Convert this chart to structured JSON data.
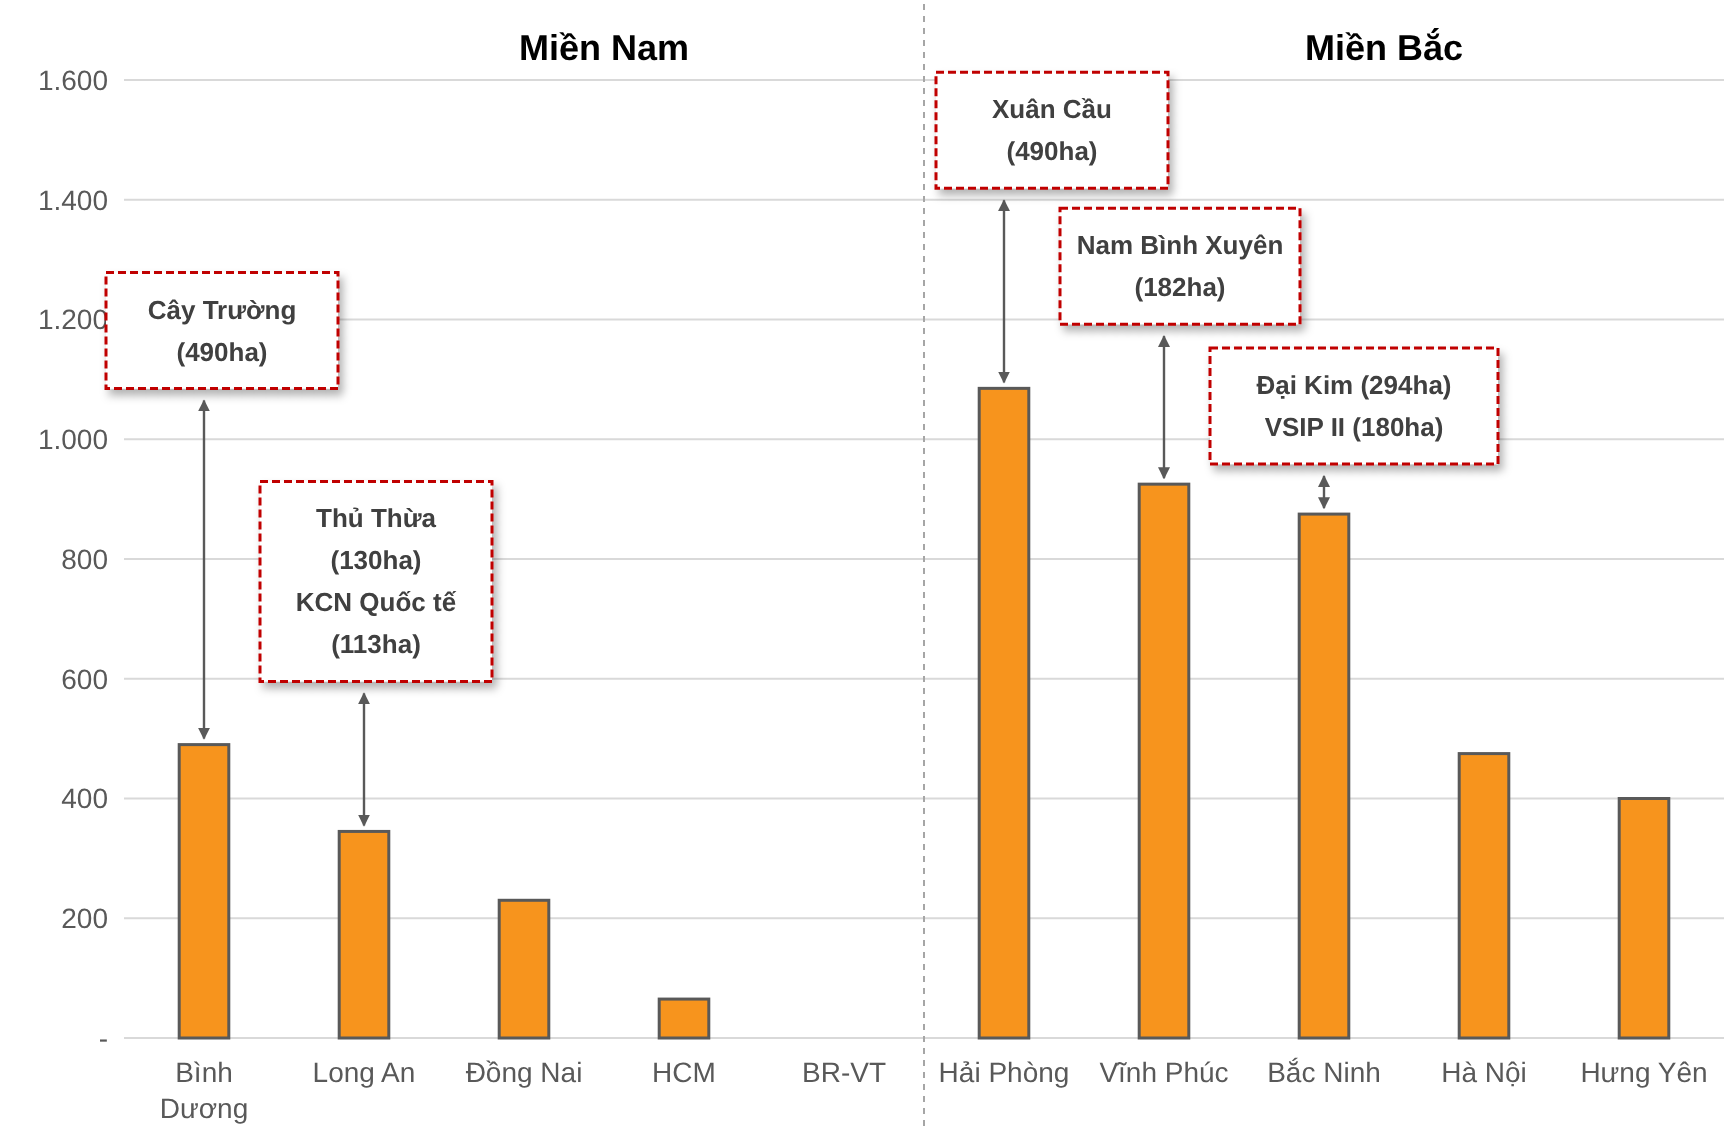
{
  "chart_data": {
    "type": "bar",
    "categories": [
      "Bình\nDương",
      "Long An",
      "Đồng Nai",
      "HCM",
      "BR-VT",
      "Hải Phòng",
      "Vĩnh Phúc",
      "Bắc Ninh",
      "Hà Nội",
      "Hưng Yên"
    ],
    "values": [
      490,
      345,
      230,
      65,
      null,
      1085,
      925,
      875,
      475,
      400
    ],
    "color": "#f7941d",
    "ylim": [
      0,
      1600
    ],
    "yticks": [
      {
        "value": 0,
        "label": "-"
      },
      {
        "value": 200,
        "label": "200"
      },
      {
        "value": 400,
        "label": "400"
      },
      {
        "value": 600,
        "label": "600"
      },
      {
        "value": 800,
        "label": "800"
      },
      {
        "value": 1000,
        "label": "1.000"
      },
      {
        "value": 1200,
        "label": "1.200"
      },
      {
        "value": 1400,
        "label": "1.400"
      },
      {
        "value": 1600,
        "label": "1.600"
      }
    ],
    "grid": "y",
    "annotations": [
      "Miền Nam",
      "Miền Bắc",
      "Cây Trường\n(490ha)",
      "Thủ Thừa\n(130ha)\nKCN Quốc tế\n(113ha)",
      "Xuân Cầu\n(490ha)",
      "Nam Bình Xuyên\n(182ha)",
      "Đại Kim (294ha)\nVSIP II (180ha)"
    ]
  }
}
